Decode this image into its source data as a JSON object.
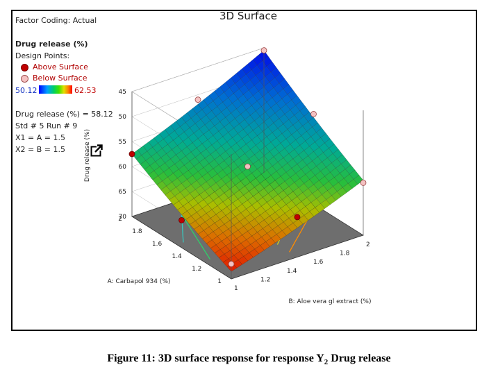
{
  "panel": {
    "factor_coding": "Factor Coding: Actual",
    "response_title": "Drug release (%)",
    "design_points_label": "Design Points:",
    "above_label": "Above Surface",
    "below_label": "Below Surface",
    "gradient_min": "50.12",
    "gradient_max": "62.53",
    "readout_value": "Drug release (%) = 58.12",
    "readout_std": "Std # 5 Run # 9",
    "readout_x1": "X1 = A = 1.5",
    "readout_x2": "X2 = B = 1.5",
    "colors": {
      "above": "#c00000",
      "below": "#f4c2c2",
      "low": "#0000ff",
      "high": "#ff0000"
    },
    "icon": "external-link-icon"
  },
  "caption": {
    "prefix": "Figure 11: 3D surface response for response Y",
    "subscript": "2",
    "suffix": " Drug release"
  },
  "chart_data": {
    "type": "surface",
    "title": "3D Surface",
    "xlabel": "B: Aloe vera gl extract (%)",
    "ylabel": "A: Carbapol 934 (%)",
    "zlabel": "Drug release (%)",
    "x_ticks": [
      "1",
      "1.2",
      "1.4",
      "1.6",
      "1.8",
      "2"
    ],
    "y_ticks": [
      "1",
      "1.2",
      "1.4",
      "1.6",
      "1.8",
      "2"
    ],
    "z_ticks": [
      "45",
      "50",
      "55",
      "60",
      "65",
      "70"
    ],
    "xlim": [
      1,
      2
    ],
    "ylim": [
      1,
      2
    ],
    "zlim": [
      45,
      70
    ],
    "z_axis_inverted": true,
    "corners": {
      "A1_B1": 68.5,
      "A1_B2": 59.0,
      "A2_B1": 57.5,
      "A2_B2": 45.5
    },
    "design_points": [
      {
        "A": 1,
        "B": 1,
        "z": 67.0,
        "position": "below"
      },
      {
        "A": 2,
        "B": 1,
        "z": 57.5,
        "position": "above"
      },
      {
        "A": 1,
        "B": 2,
        "z": 59.5,
        "position": "below"
      },
      {
        "A": 2,
        "B": 2,
        "z": 45.5,
        "position": "below"
      },
      {
        "A": 1.5,
        "B": 1.5,
        "z": 58.12,
        "position": "below"
      },
      {
        "A": 1.5,
        "B": 1,
        "z": 64.5,
        "position": "above"
      },
      {
        "A": 1,
        "B": 1.5,
        "z": 62.0,
        "position": "above"
      },
      {
        "A": 2,
        "B": 1.5,
        "z": 51.0,
        "position": "below"
      },
      {
        "A": 1.5,
        "B": 2,
        "z": 52.0,
        "position": "below"
      }
    ],
    "grid": true,
    "legend": "top-left"
  }
}
